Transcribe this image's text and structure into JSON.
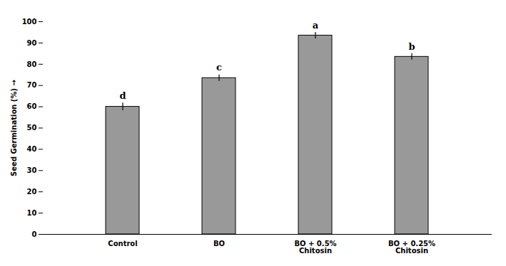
{
  "chart_data": {
    "type": "bar",
    "categories": [
      "Control",
      "BO",
      "BO + 0.5%\nChitosin",
      "BO + 0.25%\nChitosin"
    ],
    "values": [
      60.0,
      73.5,
      93.5,
      83.5
    ],
    "errors": [
      1.8,
      1.5,
      1.5,
      1.5
    ],
    "letters": [
      "d",
      "c",
      "a",
      "b"
    ],
    "color": "#999999",
    "ylabel": "Seed Germination (%)",
    "ylim": [
      0,
      100
    ],
    "yticks": [
      0,
      10,
      20,
      30,
      40,
      50,
      60,
      70,
      80,
      90,
      100
    ],
    "grid": false
  }
}
